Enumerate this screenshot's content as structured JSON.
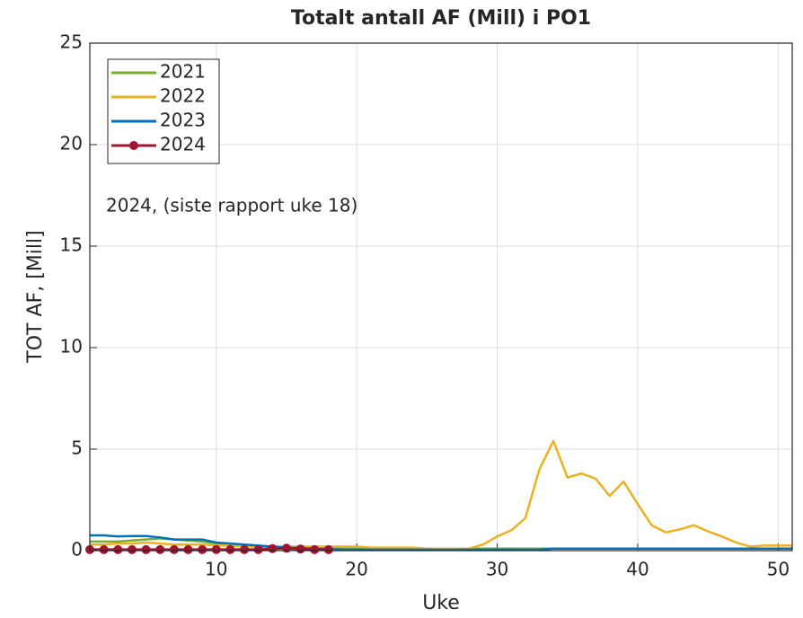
{
  "chart_data": {
    "type": "line",
    "title": "Totalt antall AF (Mill) i PO1",
    "xlabel": "Uke",
    "ylabel": "TOT AF, [Mill]",
    "annotation": "2024, (siste rapport uke 18)",
    "x": [
      1,
      2,
      3,
      4,
      5,
      6,
      7,
      8,
      9,
      10,
      11,
      12,
      13,
      14,
      15,
      16,
      17,
      18,
      19,
      20,
      21,
      22,
      23,
      24,
      25,
      26,
      27,
      28,
      29,
      30,
      31,
      32,
      33,
      34,
      35,
      36,
      37,
      38,
      39,
      40,
      41,
      42,
      43,
      44,
      45,
      46,
      47,
      48,
      49,
      50,
      51
    ],
    "series": [
      {
        "name": "2021",
        "color": "#77ac30",
        "values": [
          0.45,
          0.45,
          0.45,
          0.5,
          0.55,
          0.6,
          0.55,
          0.5,
          0.45,
          0.35,
          0.3,
          0.25,
          0.2,
          0.15,
          0.12,
          0.1,
          0.1,
          0.1,
          0.1,
          0.1,
          0.1,
          0.1,
          0.1,
          0.1,
          0.1,
          0.1,
          0.1,
          0.1,
          0.1,
          0.1,
          0.1,
          0.1,
          0.1,
          0.1,
          0.1,
          0.1,
          0.1,
          0.1,
          0.1,
          0.1,
          0.1,
          0.1,
          0.1,
          0.1,
          0.1,
          0.1,
          0.1,
          0.1,
          0.1,
          0.1,
          0.1
        ]
      },
      {
        "name": "2022",
        "color": "#edb120",
        "values": [
          0.3,
          0.3,
          0.35,
          0.35,
          0.4,
          0.35,
          0.3,
          0.3,
          0.3,
          0.25,
          0.25,
          0.2,
          0.2,
          0.2,
          0.2,
          0.2,
          0.2,
          0.2,
          0.2,
          0.2,
          0.15,
          0.15,
          0.15,
          0.15,
          0.1,
          0.1,
          0.1,
          0.1,
          0.3,
          0.7,
          1.0,
          1.6,
          4.0,
          5.4,
          3.6,
          3.8,
          3.55,
          2.7,
          3.4,
          2.3,
          1.25,
          0.9,
          1.05,
          1.25,
          0.95,
          0.7,
          0.4,
          0.2,
          0.25,
          0.25,
          0.25
        ]
      },
      {
        "name": "2023",
        "color": "#0072bd",
        "values": [
          0.75,
          0.75,
          0.7,
          0.72,
          0.72,
          0.65,
          0.55,
          0.55,
          0.55,
          0.4,
          0.35,
          0.3,
          0.25,
          0.2,
          0.15,
          0.12,
          0.1,
          0.08,
          0.05,
          0.05,
          0.05,
          0.05,
          0.05,
          0.05,
          0.05,
          0.05,
          0.05,
          0.05,
          0.05,
          0.05,
          0.05,
          0.05,
          0.05,
          0.1,
          0.1,
          0.1,
          0.1,
          0.1,
          0.1,
          0.1,
          0.1,
          0.1,
          0.1,
          0.1,
          0.1,
          0.1,
          0.1,
          0.1,
          0.1,
          0.1,
          0.1
        ]
      },
      {
        "name": "2024",
        "color": "#a2142f",
        "marker": "o",
        "values": [
          0.05,
          0.05,
          0.05,
          0.05,
          0.05,
          0.05,
          0.05,
          0.05,
          0.05,
          0.05,
          0.05,
          0.05,
          0.05,
          0.1,
          0.12,
          0.08,
          0.05,
          0.05,
          null,
          null,
          null,
          null,
          null,
          null,
          null,
          null,
          null,
          null,
          null,
          null,
          null,
          null,
          null,
          null,
          null,
          null,
          null,
          null,
          null,
          null,
          null,
          null,
          null,
          null,
          null,
          null,
          null,
          null,
          null,
          null,
          null
        ]
      }
    ],
    "xlim": [
      1,
      51
    ],
    "ylim": [
      0,
      25
    ],
    "xticks": [
      10,
      20,
      30,
      40,
      50
    ],
    "yticks": [
      0,
      5,
      10,
      15,
      20,
      25
    ],
    "grid": true,
    "legend": "upper left"
  }
}
